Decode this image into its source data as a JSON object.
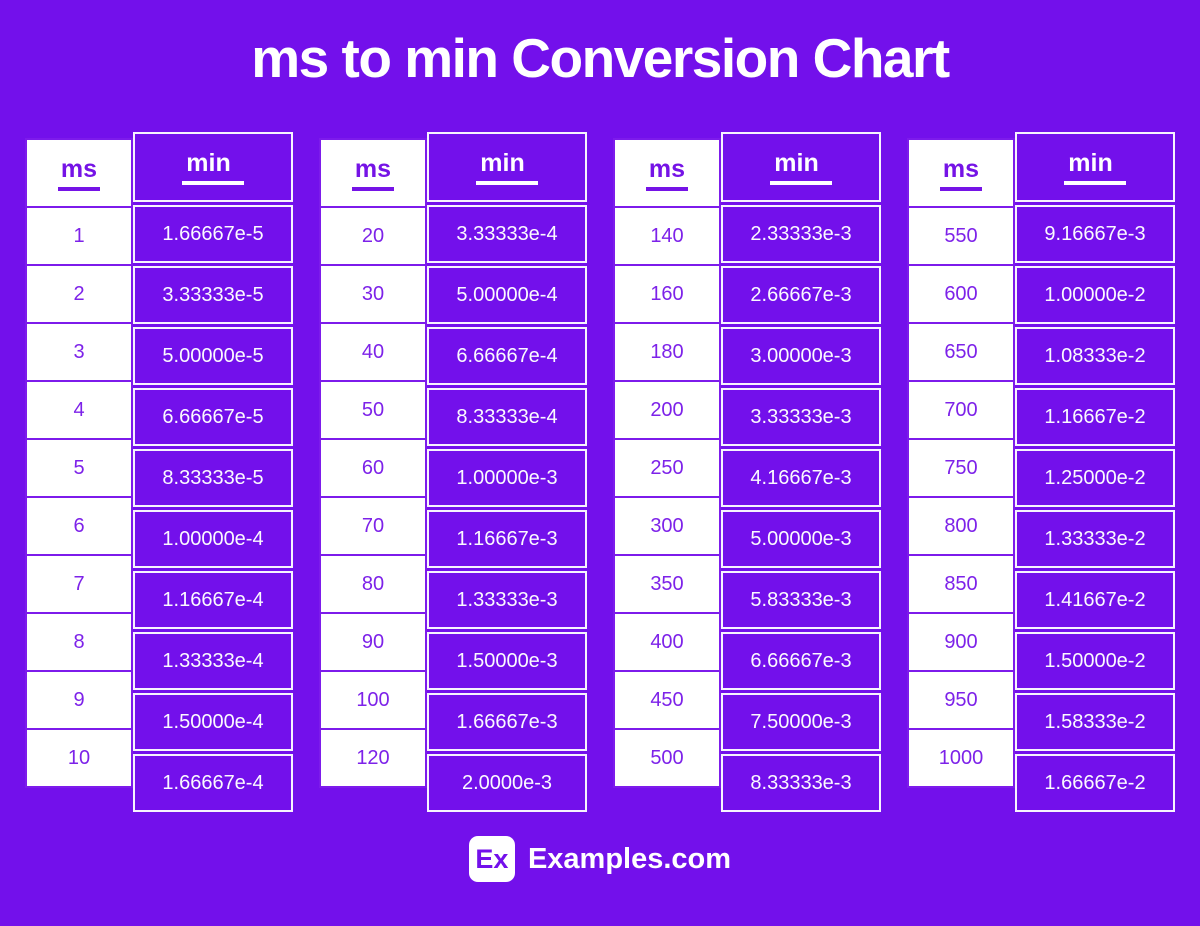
{
  "header": {
    "title": "ms to min Conversion Chart"
  },
  "colors": {
    "background": "#7310EB",
    "cell_purple": "#7310EB",
    "grid_purple": "#7D1BEB",
    "text_purple": "#7D22E9",
    "white": "#FFFFFF"
  },
  "footer": {
    "logo_text": "Ex",
    "site_name": "Examples.com"
  },
  "chart_data": {
    "type": "table",
    "title": "ms to min Conversion Chart",
    "columns": [
      "ms",
      "min"
    ],
    "groups": [
      {
        "headers": [
          "ms",
          "min"
        ],
        "rows": [
          [
            "1",
            "1.66667e-5"
          ],
          [
            "2",
            "3.33333e-5"
          ],
          [
            "3",
            "5.00000e-5"
          ],
          [
            "4",
            "6.66667e-5"
          ],
          [
            "5",
            "8.33333e-5"
          ],
          [
            "6",
            "1.00000e-4"
          ],
          [
            "7",
            "1.16667e-4"
          ],
          [
            "8",
            "1.33333e-4"
          ],
          [
            "9",
            "1.50000e-4"
          ],
          [
            "10",
            "1.66667e-4"
          ]
        ]
      },
      {
        "headers": [
          "ms",
          "min"
        ],
        "rows": [
          [
            "20",
            "3.33333e-4"
          ],
          [
            "30",
            "5.00000e-4"
          ],
          [
            "40",
            "6.66667e-4"
          ],
          [
            "50",
            "8.33333e-4"
          ],
          [
            "60",
            "1.00000e-3"
          ],
          [
            "70",
            "1.16667e-3"
          ],
          [
            "80",
            "1.33333e-3"
          ],
          [
            "90",
            "1.50000e-3"
          ],
          [
            "100",
            "1.66667e-3"
          ],
          [
            "120",
            "2.0000e-3"
          ]
        ]
      },
      {
        "headers": [
          "ms",
          "min"
        ],
        "rows": [
          [
            "140",
            "2.33333e-3"
          ],
          [
            "160",
            "2.66667e-3"
          ],
          [
            "180",
            "3.00000e-3"
          ],
          [
            "200",
            "3.33333e-3"
          ],
          [
            "250",
            "4.16667e-3"
          ],
          [
            "300",
            "5.00000e-3"
          ],
          [
            "350",
            "5.83333e-3"
          ],
          [
            "400",
            "6.66667e-3"
          ],
          [
            "450",
            "7.50000e-3"
          ],
          [
            "500",
            "8.33333e-3"
          ]
        ]
      },
      {
        "headers": [
          "ms",
          "min"
        ],
        "rows": [
          [
            "550",
            "9.16667e-3"
          ],
          [
            "600",
            "1.00000e-2"
          ],
          [
            "650",
            "1.08333e-2"
          ],
          [
            "700",
            "1.16667e-2"
          ],
          [
            "750",
            "1.25000e-2"
          ],
          [
            "800",
            "1.33333e-2"
          ],
          [
            "850",
            "1.41667e-2"
          ],
          [
            "900",
            "1.50000e-2"
          ],
          [
            "950",
            "1.58333e-2"
          ],
          [
            "1000",
            "1.66667e-2"
          ]
        ]
      }
    ]
  }
}
